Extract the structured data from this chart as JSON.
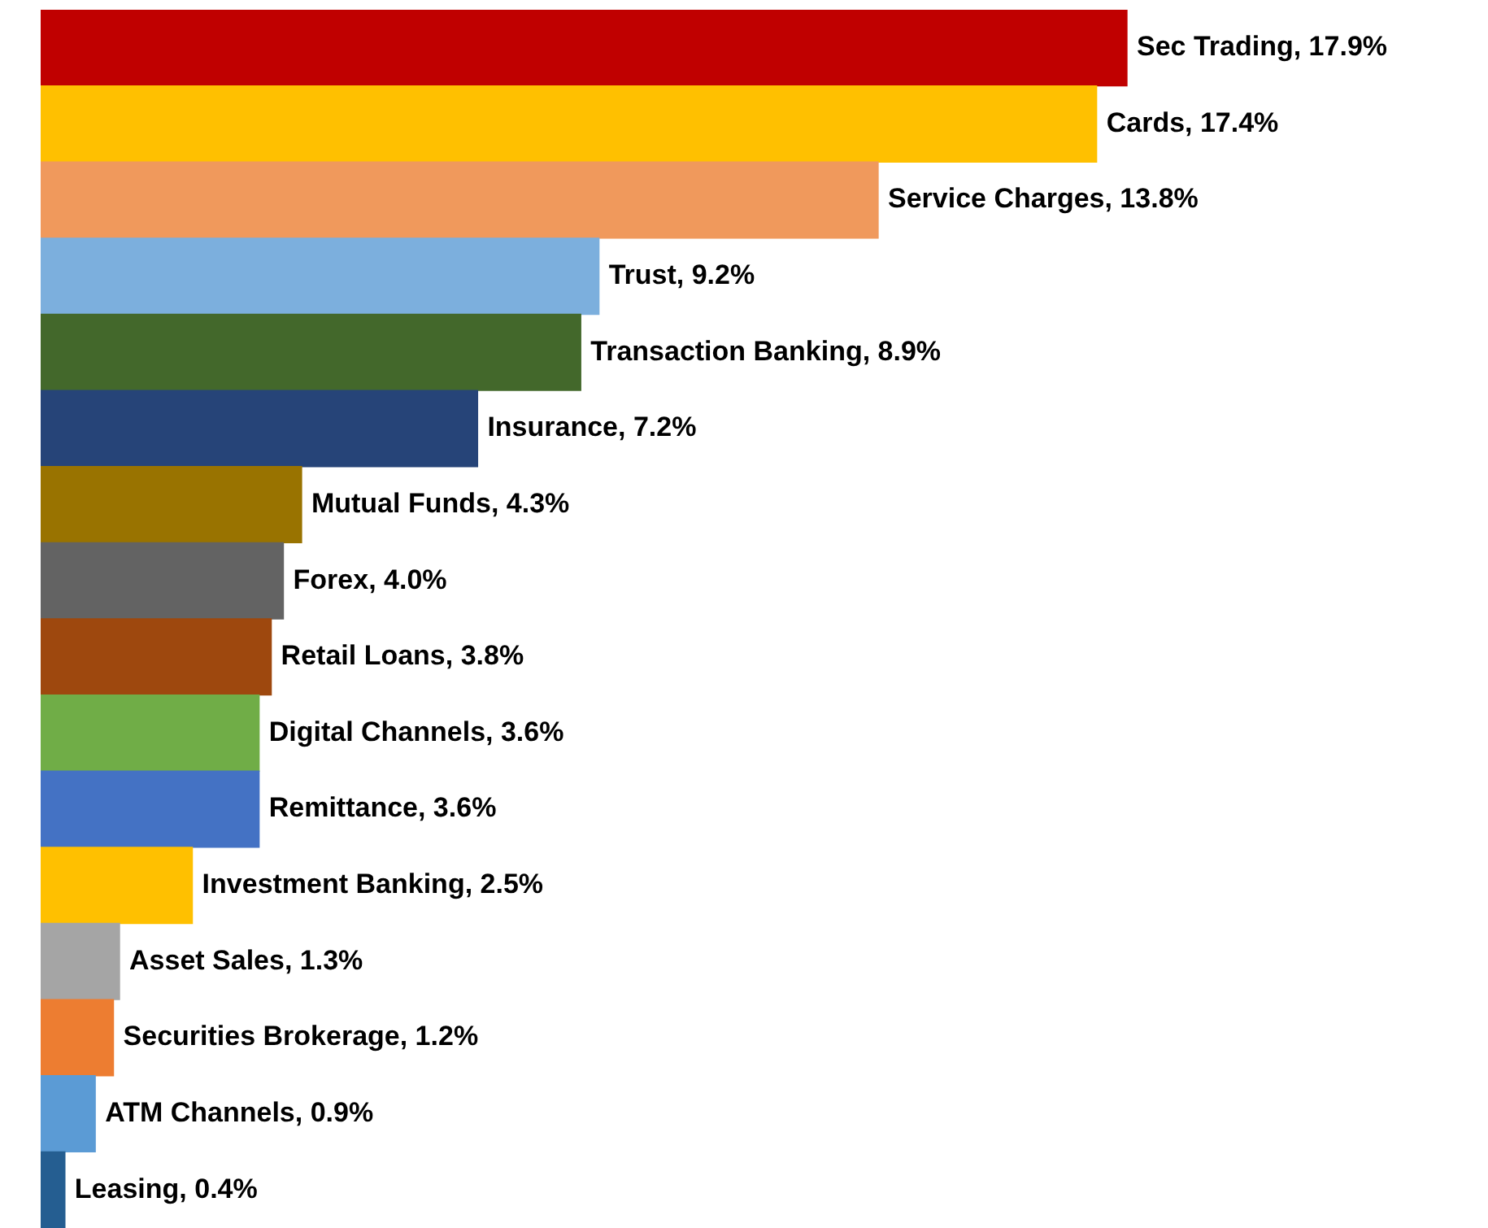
{
  "chart_data": {
    "type": "bar",
    "orientation": "horizontal",
    "categories": [
      null,
      null,
      null,
      null,
      null,
      null,
      null,
      null,
      null,
      null,
      null,
      null,
      null,
      null,
      null,
      null
    ],
    "values": [
      17.9,
      17.4,
      13.8,
      9.2,
      8.9,
      7.2,
      4.3,
      4.0,
      3.8,
      3.6,
      3.6,
      2.5,
      1.3,
      1.2,
      0.9,
      0.4
    ],
    "value_labels": [
      "Sec Trading, 17.9%",
      "Cards, 17.4%",
      "Service Charges, 13.8%",
      "Trust, 9.2%",
      "Transaction Banking, 8.9%",
      "Insurance, 7.2%",
      "Mutual Funds, 4.3%",
      "Forex, 4.0%",
      "Retail Loans, 3.8%",
      "Digital Channels, 3.6%",
      "Remittance, 3.6%",
      "Investment Banking, 2.5%",
      "Asset Sales, 1.3%",
      "Securities Brokerage, 1.2%",
      "ATM Channels, 0.9%",
      "Leasing, 0.4%"
    ],
    "colors": [
      "#c00000",
      "#ffc000",
      "#f0995c",
      "#7cafdd",
      "#43682b",
      "#264478",
      "#997300",
      "#636363",
      "#9e480e",
      "#70ad47",
      "#4472c4",
      "#ffc000",
      "#a5a5a5",
      "#ed7d31",
      "#5b9bd5",
      "#255e91"
    ]
  }
}
